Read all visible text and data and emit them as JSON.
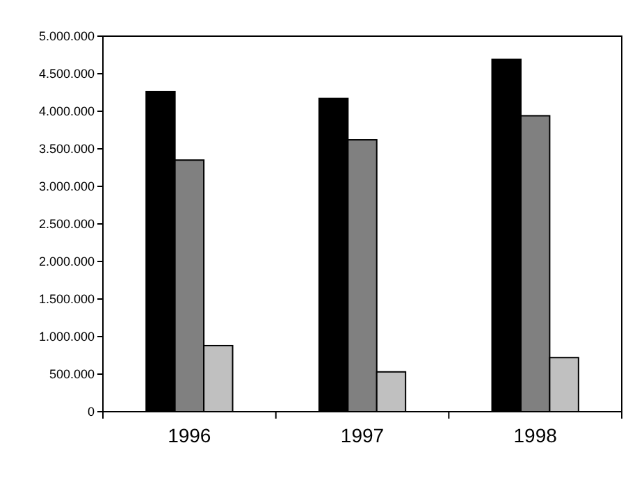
{
  "chart_data": {
    "type": "bar",
    "categories": [
      "1996",
      "1997",
      "1998"
    ],
    "series": [
      {
        "color": "#000000",
        "values": [
          4260000,
          4170000,
          4690000
        ]
      },
      {
        "color": "#808080",
        "values": [
          3350000,
          3620000,
          3940000
        ]
      },
      {
        "color": "#c0c0c0",
        "values": [
          880000,
          530000,
          720000
        ]
      }
    ],
    "ylim": [
      0,
      5000000
    ],
    "yticks": [
      {
        "value": 0,
        "label": "0"
      },
      {
        "value": 500000,
        "label": "500.000"
      },
      {
        "value": 1000000,
        "label": "1.000.000"
      },
      {
        "value": 1500000,
        "label": "1.500.000"
      },
      {
        "value": 2000000,
        "label": "2.000.000"
      },
      {
        "value": 2500000,
        "label": "2.500.000"
      },
      {
        "value": 3000000,
        "label": "3.000.000"
      },
      {
        "value": 3500000,
        "label": "3.500.000"
      },
      {
        "value": 4000000,
        "label": "4.000.000"
      },
      {
        "value": 4500000,
        "label": "4.500.000"
      },
      {
        "value": 5000000,
        "label": "5.000.000"
      }
    ],
    "grid": false
  }
}
